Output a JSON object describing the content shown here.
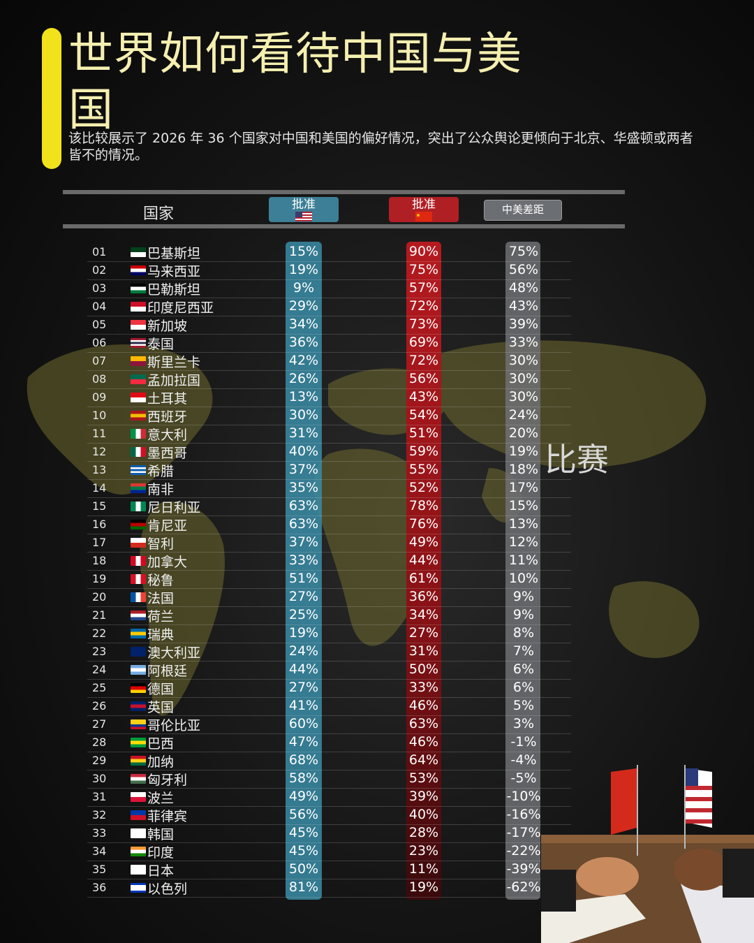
{
  "header": {
    "title": "世界如何看待中国与美国",
    "subtitle": "该比较展示了 2026 年 36 个国家对中国和美国的偏好情况，突出了公众舆论更倾向于北京、华盛顿或两者皆不的情况。",
    "col_country": "国家",
    "col_us": "批准",
    "col_cn": "批准",
    "col_gap": "中美差距"
  },
  "watermark": "比赛",
  "colors": {
    "us": "#3a8ca6",
    "cn": "#b51a1f",
    "gap": "#6e7074",
    "accent": "#f2e21b"
  },
  "chart_data": {
    "type": "table",
    "columns": [
      "国家",
      "美国 批准",
      "中国 批准",
      "中美差距"
    ],
    "rows": [
      {
        "rank": "01",
        "country": "巴基斯坦",
        "us": "15%",
        "cn": "90%",
        "gap": "75%",
        "flag": [
          "#01411c",
          "#ffffff"
        ]
      },
      {
        "rank": "02",
        "country": "马来西亚",
        "us": "19%",
        "cn": "75%",
        "gap": "56%",
        "flag": [
          "#cc0001",
          "#ffffff",
          "#010066"
        ]
      },
      {
        "rank": "03",
        "country": "巴勒斯坦",
        "us": "9%",
        "cn": "57%",
        "gap": "48%",
        "flag": [
          "#000000",
          "#ffffff",
          "#007a3d"
        ]
      },
      {
        "rank": "04",
        "country": "印度尼西亚",
        "us": "29%",
        "cn": "72%",
        "gap": "43%",
        "flag": [
          "#ce1126",
          "#ffffff"
        ]
      },
      {
        "rank": "05",
        "country": "新加坡",
        "us": "34%",
        "cn": "73%",
        "gap": "39%",
        "flag": [
          "#ef3340",
          "#ffffff"
        ]
      },
      {
        "rank": "06",
        "country": "泰国",
        "us": "36%",
        "cn": "69%",
        "gap": "33%",
        "flag": [
          "#a51931",
          "#ffffff",
          "#2d2a4a",
          "#ffffff",
          "#a51931"
        ]
      },
      {
        "rank": "07",
        "country": "斯里兰卡",
        "us": "42%",
        "cn": "72%",
        "gap": "30%",
        "flag": [
          "#ffb700",
          "#8d153a"
        ]
      },
      {
        "rank": "08",
        "country": "孟加拉国",
        "us": "26%",
        "cn": "56%",
        "gap": "30%",
        "flag": [
          "#006a4e",
          "#f42a41"
        ]
      },
      {
        "rank": "09",
        "country": "土耳其",
        "us": "13%",
        "cn": "43%",
        "gap": "30%",
        "flag": [
          "#e30a17",
          "#ffffff"
        ]
      },
      {
        "rank": "10",
        "country": "西班牙",
        "us": "30%",
        "cn": "54%",
        "gap": "24%",
        "flag": [
          "#aa151b",
          "#f1bf00",
          "#aa151b"
        ]
      },
      {
        "rank": "11",
        "country": "意大利",
        "us": "31%",
        "cn": "51%",
        "gap": "20%",
        "flag": [
          "#009246",
          "#ffffff",
          "#ce2b37"
        ],
        "vertical": true
      },
      {
        "rank": "12",
        "country": "墨西哥",
        "us": "40%",
        "cn": "59%",
        "gap": "19%",
        "flag": [
          "#006847",
          "#ffffff",
          "#ce1126"
        ],
        "vertical": true
      },
      {
        "rank": "13",
        "country": "希腊",
        "us": "37%",
        "cn": "55%",
        "gap": "18%",
        "flag": [
          "#0d5eaf",
          "#ffffff",
          "#0d5eaf",
          "#ffffff",
          "#0d5eaf"
        ]
      },
      {
        "rank": "14",
        "country": "南非",
        "us": "35%",
        "cn": "52%",
        "gap": "17%",
        "flag": [
          "#de3831",
          "#007a4d",
          "#002395"
        ]
      },
      {
        "rank": "15",
        "country": "尼日利亚",
        "us": "63%",
        "cn": "78%",
        "gap": "15%",
        "flag": [
          "#008751",
          "#ffffff",
          "#008751"
        ],
        "vertical": true
      },
      {
        "rank": "16",
        "country": "肯尼亚",
        "us": "63%",
        "cn": "76%",
        "gap": "13%",
        "flag": [
          "#000000",
          "#bb0000",
          "#006600"
        ]
      },
      {
        "rank": "17",
        "country": "智利",
        "us": "37%",
        "cn": "49%",
        "gap": "12%",
        "flag": [
          "#ffffff",
          "#d52b1e"
        ]
      },
      {
        "rank": "18",
        "country": "加拿大",
        "us": "33%",
        "cn": "44%",
        "gap": "11%",
        "flag": [
          "#d80621",
          "#ffffff",
          "#d80621"
        ],
        "vertical": true
      },
      {
        "rank": "19",
        "country": "秘鲁",
        "us": "51%",
        "cn": "61%",
        "gap": "10%",
        "flag": [
          "#d91023",
          "#ffffff",
          "#d91023"
        ],
        "vertical": true
      },
      {
        "rank": "20",
        "country": "法国",
        "us": "27%",
        "cn": "36%",
        "gap": "9%",
        "flag": [
          "#0055a4",
          "#ffffff",
          "#ef4135"
        ],
        "vertical": true
      },
      {
        "rank": "21",
        "country": "荷兰",
        "us": "25%",
        "cn": "34%",
        "gap": "9%",
        "flag": [
          "#ae1c28",
          "#ffffff",
          "#21468b"
        ]
      },
      {
        "rank": "22",
        "country": "瑞典",
        "us": "19%",
        "cn": "27%",
        "gap": "8%",
        "flag": [
          "#006aa7",
          "#fecc00",
          "#006aa7"
        ]
      },
      {
        "rank": "23",
        "country": "澳大利亚",
        "us": "24%",
        "cn": "31%",
        "gap": "7%",
        "flag": [
          "#012169",
          "#012169"
        ]
      },
      {
        "rank": "24",
        "country": "阿根廷",
        "us": "44%",
        "cn": "50%",
        "gap": "6%",
        "flag": [
          "#74acdf",
          "#ffffff",
          "#74acdf"
        ]
      },
      {
        "rank": "25",
        "country": "德国",
        "us": "27%",
        "cn": "33%",
        "gap": "6%",
        "flag": [
          "#000000",
          "#dd0000",
          "#ffce00"
        ]
      },
      {
        "rank": "26",
        "country": "英国",
        "us": "41%",
        "cn": "46%",
        "gap": "5%",
        "flag": [
          "#012169",
          "#c8102e",
          "#012169"
        ]
      },
      {
        "rank": "27",
        "country": "哥伦比亚",
        "us": "60%",
        "cn": "63%",
        "gap": "3%",
        "flag": [
          "#fcd116",
          "#fcd116",
          "#003893",
          "#ce1126"
        ]
      },
      {
        "rank": "28",
        "country": "巴西",
        "us": "47%",
        "cn": "46%",
        "gap": "-1%",
        "flag": [
          "#009c3b",
          "#ffdf00",
          "#009c3b"
        ]
      },
      {
        "rank": "29",
        "country": "加纳",
        "us": "68%",
        "cn": "64%",
        "gap": "-4%",
        "flag": [
          "#ce1126",
          "#fcd116",
          "#006b3f"
        ]
      },
      {
        "rank": "30",
        "country": "匈牙利",
        "us": "58%",
        "cn": "53%",
        "gap": "-5%",
        "flag": [
          "#cd2a3e",
          "#ffffff",
          "#436f4d"
        ]
      },
      {
        "rank": "31",
        "country": "波兰",
        "us": "49%",
        "cn": "39%",
        "gap": "-10%",
        "flag": [
          "#ffffff",
          "#dc143c"
        ]
      },
      {
        "rank": "32",
        "country": "菲律宾",
        "us": "56%",
        "cn": "40%",
        "gap": "-16%",
        "flag": [
          "#0038a8",
          "#ce1126"
        ]
      },
      {
        "rank": "33",
        "country": "韩国",
        "us": "45%",
        "cn": "28%",
        "gap": "-17%",
        "flag": [
          "#ffffff",
          "#ffffff"
        ]
      },
      {
        "rank": "34",
        "country": "印度",
        "us": "45%",
        "cn": "23%",
        "gap": "-22%",
        "flag": [
          "#ff9933",
          "#ffffff",
          "#138808"
        ]
      },
      {
        "rank": "35",
        "country": "日本",
        "us": "50%",
        "cn": "11%",
        "gap": "-39%",
        "flag": [
          "#ffffff",
          "#ffffff"
        ]
      },
      {
        "rank": "36",
        "country": "以色列",
        "us": "81%",
        "cn": "19%",
        "gap": "-62%",
        "flag": [
          "#0038b8",
          "#ffffff",
          "#ffffff",
          "#ffffff",
          "#0038b8"
        ]
      }
    ]
  }
}
